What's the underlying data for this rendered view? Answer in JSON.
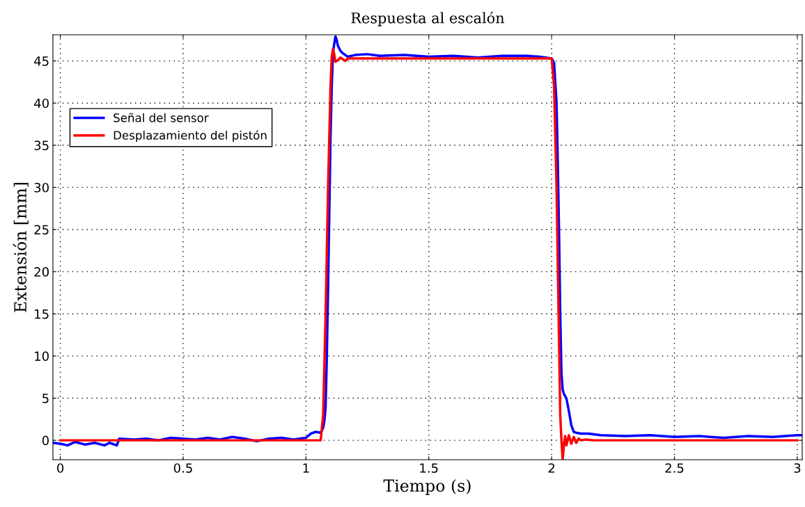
{
  "chart_data": {
    "type": "line",
    "title": "Respuesta al escalón",
    "xlabel": "Tiempo (s)",
    "ylabel": "Extensión [mm]",
    "xlim": [
      -0.03,
      3.02
    ],
    "ylim": [
      -2.3,
      48.1
    ],
    "xticks": [
      0,
      0.5,
      1,
      1.5,
      2,
      2.5,
      3
    ],
    "yticks": [
      0,
      5,
      10,
      15,
      20,
      25,
      30,
      35,
      40,
      45
    ],
    "grid": true,
    "legend": "upper left",
    "line_style": "solid",
    "marker": "none",
    "series": [
      {
        "name": "Señal del sensor",
        "color": "#0000ff",
        "x": [
          -0.03,
          0.0,
          0.03,
          0.06,
          0.1,
          0.14,
          0.18,
          0.2,
          0.23,
          0.24,
          0.3,
          0.35,
          0.4,
          0.45,
          0.5,
          0.55,
          0.6,
          0.65,
          0.7,
          0.75,
          0.8,
          0.85,
          0.9,
          0.95,
          1.0,
          1.02,
          1.04,
          1.06,
          1.07,
          1.075,
          1.08,
          1.085,
          1.09,
          1.095,
          1.1,
          1.105,
          1.11,
          1.115,
          1.12,
          1.125,
          1.13,
          1.14,
          1.15,
          1.17,
          1.2,
          1.25,
          1.3,
          1.4,
          1.5,
          1.6,
          1.7,
          1.8,
          1.9,
          1.95,
          2.0,
          2.01,
          2.02,
          2.025,
          2.03,
          2.035,
          2.04,
          2.045,
          2.05,
          2.06,
          2.07,
          2.08,
          2.09,
          2.1,
          2.12,
          2.15,
          2.2,
          2.3,
          2.4,
          2.5,
          2.6,
          2.7,
          2.8,
          2.9,
          3.0,
          3.02
        ],
        "values": [
          -0.3,
          -0.4,
          -0.6,
          -0.2,
          -0.5,
          -0.3,
          -0.6,
          -0.3,
          -0.6,
          0.2,
          0.1,
          0.2,
          0.0,
          0.3,
          0.2,
          0.1,
          0.3,
          0.1,
          0.4,
          0.2,
          -0.1,
          0.2,
          0.3,
          0.1,
          0.3,
          0.8,
          1.0,
          0.9,
          1.5,
          2.3,
          4.0,
          10.0,
          18.0,
          27.0,
          36.0,
          42.0,
          46.0,
          47.0,
          47.9,
          47.5,
          46.8,
          46.2,
          45.9,
          45.5,
          45.7,
          45.8,
          45.6,
          45.7,
          45.5,
          45.6,
          45.4,
          45.6,
          45.6,
          45.5,
          45.3,
          44.8,
          40.0,
          33.0,
          25.0,
          15.0,
          8.0,
          6.0,
          5.5,
          5.0,
          3.5,
          1.8,
          1.0,
          0.9,
          0.8,
          0.8,
          0.6,
          0.5,
          0.6,
          0.4,
          0.5,
          0.3,
          0.5,
          0.4,
          0.6,
          0.6
        ]
      },
      {
        "name": "Desplazamiento del pistón",
        "color": "#ff0000",
        "x": [
          0.0,
          0.5,
          1.0,
          1.06,
          1.07,
          1.08,
          1.09,
          1.1,
          1.105,
          1.11,
          1.115,
          1.12,
          1.13,
          1.14,
          1.15,
          1.16,
          1.17,
          1.2,
          1.5,
          2.0,
          2.01,
          2.02,
          2.03,
          2.035,
          2.04,
          2.045,
          2.05,
          2.055,
          2.06,
          2.07,
          2.08,
          2.09,
          2.1,
          2.11,
          2.12,
          2.14,
          2.17,
          2.5,
          3.0
        ],
        "values": [
          0.0,
          0.0,
          0.0,
          0.0,
          3.0,
          15.0,
          30.0,
          42.0,
          45.5,
          46.4,
          45.8,
          44.9,
          45.1,
          45.4,
          45.2,
          45.0,
          45.3,
          45.3,
          45.3,
          45.3,
          42.0,
          30.0,
          12.0,
          3.0,
          0.0,
          -2.3,
          -0.5,
          0.5,
          -0.6,
          0.6,
          -0.4,
          0.4,
          -0.3,
          0.2,
          0.0,
          0.1,
          0.0,
          0.0,
          0.0
        ]
      }
    ]
  }
}
